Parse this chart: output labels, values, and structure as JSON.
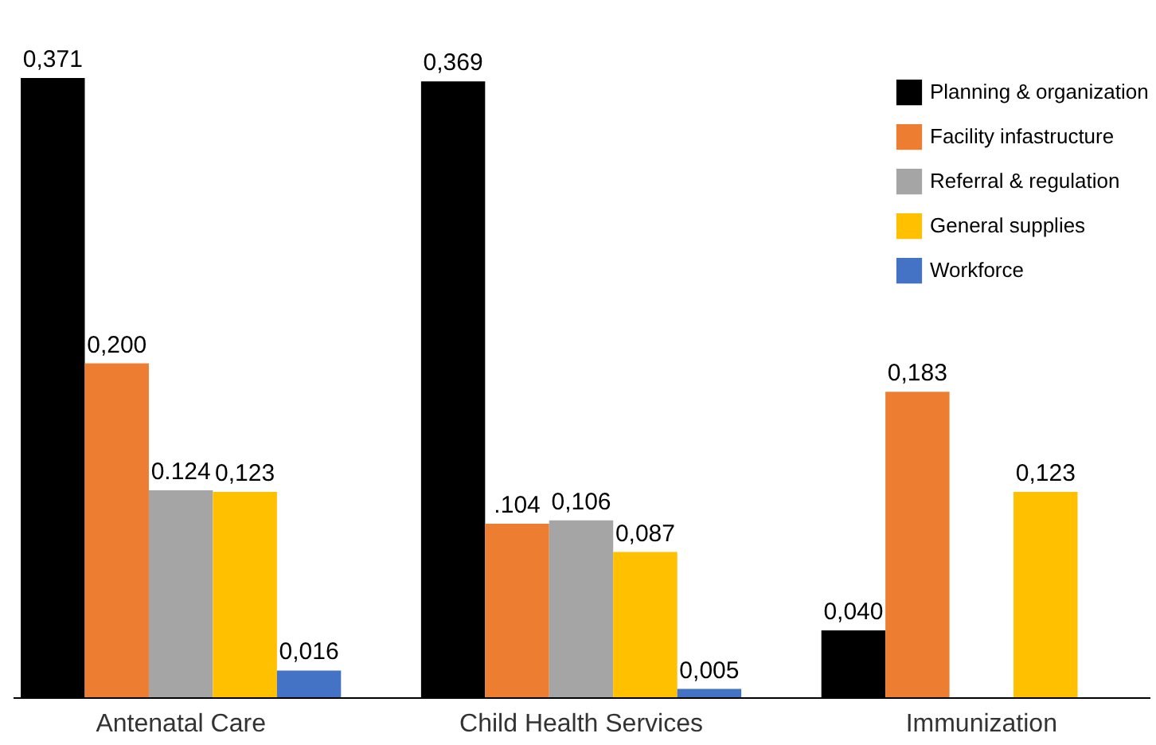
{
  "chart_data": {
    "type": "bar",
    "categories": [
      "Antenatal Care",
      "Child Health Services",
      "Immunization"
    ],
    "series": [
      {
        "name": "Planning & organization",
        "color": "#000000",
        "values": [
          0.371,
          0.369,
          0.04
        ],
        "value_labels": [
          "0,371",
          "0,369",
          "0,040"
        ]
      },
      {
        "name": "Facility infastructure",
        "color": "#ed7d31",
        "values": [
          0.2,
          0.104,
          0.183
        ],
        "value_labels": [
          "0,200",
          ".104",
          "0,183"
        ]
      },
      {
        "name": "Referral & regulation",
        "color": "#a5a5a5",
        "values": [
          0.124,
          0.106,
          null
        ],
        "value_labels": [
          "0.124",
          "0,106",
          null
        ]
      },
      {
        "name": "General supplies",
        "color": "#ffc000",
        "values": [
          0.123,
          0.087,
          0.123
        ],
        "value_labels": [
          "0,123",
          "0,087",
          "0,123"
        ]
      },
      {
        "name": "Workforce",
        "color": "#4472c4",
        "values": [
          0.016,
          0.005,
          null
        ],
        "value_labels": [
          "0,016",
          "0,005",
          null
        ]
      }
    ],
    "legend": "top right",
    "grid": false
  }
}
